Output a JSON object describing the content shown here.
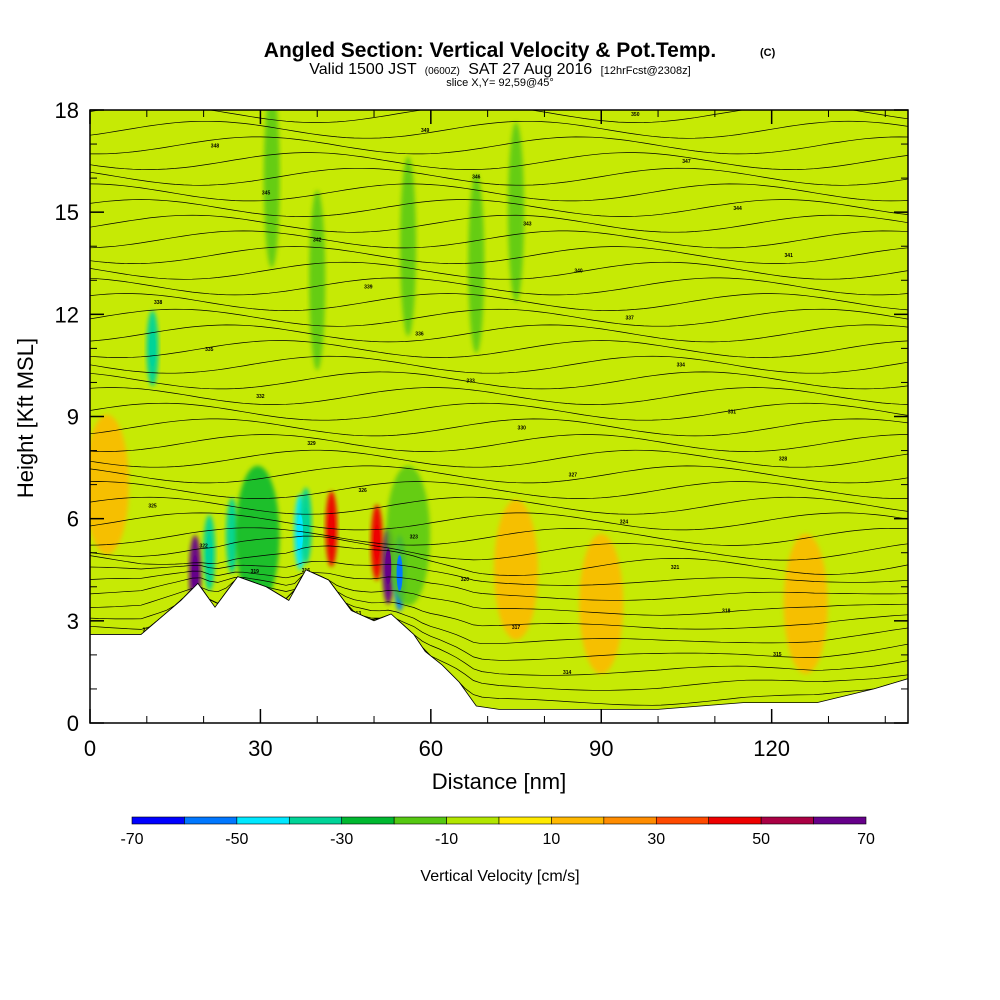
{
  "chart_data": {
    "type": "heatmap",
    "title": "Angled Section: Vertical Velocity & Pot.Temp.",
    "title_unit": "(C)",
    "subtitle_parts": [
      "Valid 1500 JST",
      "(0600Z)",
      "SAT 27 Aug 2016",
      "[12hrFcst@2308z]"
    ],
    "slice_label": "slice X,Y= 92,59@45°",
    "xlabel": "Distance [nm]",
    "ylabel": "Height [Kft MSL]",
    "xlim": [
      0,
      144
    ],
    "ylim": [
      0,
      18
    ],
    "xticks": [
      0,
      30,
      60,
      90,
      120
    ],
    "yticks": [
      0,
      3,
      6,
      9,
      12,
      15,
      18
    ],
    "colorbar": {
      "title": "Vertical Velocity [cm/s]",
      "tick_labels": [
        -70,
        -50,
        -30,
        -10,
        10,
        30,
        50,
        70
      ],
      "bins": [
        {
          "min": -70,
          "max": -60,
          "color": "#0000ff"
        },
        {
          "min": -60,
          "max": -50,
          "color": "#0077ff"
        },
        {
          "min": -50,
          "max": -40,
          "color": "#00e8ff"
        },
        {
          "min": -40,
          "max": -30,
          "color": "#00d498"
        },
        {
          "min": -30,
          "max": -20,
          "color": "#00b830"
        },
        {
          "min": -20,
          "max": -10,
          "color": "#55c812"
        },
        {
          "min": -10,
          "max": 0,
          "color": "#b2e600"
        },
        {
          "min": 0,
          "max": 10,
          "color": "#ffea00"
        },
        {
          "min": 10,
          "max": 20,
          "color": "#ffb800"
        },
        {
          "min": 20,
          "max": 30,
          "color": "#ff8c00"
        },
        {
          "min": 30,
          "max": 40,
          "color": "#ff4a00"
        },
        {
          "min": 40,
          "max": 50,
          "color": "#ee0000"
        },
        {
          "min": 50,
          "max": 60,
          "color": "#aa0044"
        },
        {
          "min": 60,
          "max": 70,
          "color": "#66008a"
        }
      ]
    },
    "terrain": [
      [
        0,
        2.6
      ],
      [
        9,
        2.6
      ],
      [
        16,
        3.6
      ],
      [
        19,
        4.1
      ],
      [
        22,
        3.4
      ],
      [
        26,
        4.3
      ],
      [
        31,
        4.0
      ],
      [
        35,
        3.6
      ],
      [
        38,
        4.5
      ],
      [
        42,
        4.2
      ],
      [
        46,
        3.3
      ],
      [
        50,
        3.0
      ],
      [
        53,
        3.2
      ],
      [
        57,
        2.6
      ],
      [
        59,
        2.1
      ],
      [
        62,
        1.7
      ],
      [
        65,
        1.2
      ],
      [
        68,
        0.5
      ],
      [
        72,
        0.4
      ],
      [
        100,
        0.4
      ],
      [
        115,
        0.6
      ],
      [
        128,
        0.6
      ],
      [
        138,
        1.0
      ],
      [
        144,
        1.3
      ]
    ],
    "velocity_features": [
      {
        "x": 11,
        "y": 11.0,
        "value": -40
      },
      {
        "x": 18.5,
        "y": 4.4,
        "value": 60
      },
      {
        "x": 21,
        "y": 5.0,
        "value": -40
      },
      {
        "x": 25,
        "y": 5.5,
        "value": -35
      },
      {
        "x": 29.5,
        "y": 5.5,
        "value": -30
      },
      {
        "x": 37,
        "y": 5.6,
        "value": -50
      },
      {
        "x": 38,
        "y": 5.8,
        "value": -40
      },
      {
        "x": 42.5,
        "y": 5.7,
        "value": 45
      },
      {
        "x": 50.5,
        "y": 5.3,
        "value": 45
      },
      {
        "x": 52.5,
        "y": 4.6,
        "value": 65
      },
      {
        "x": 54.5,
        "y": 4.4,
        "value": -60
      },
      {
        "x": 56,
        "y": 5.5,
        "value": -20
      },
      {
        "x": 32,
        "y": 16.0,
        "value": -20
      },
      {
        "x": 40,
        "y": 13.0,
        "value": -15
      },
      {
        "x": 56,
        "y": 14.0,
        "value": -20
      },
      {
        "x": 75,
        "y": 15.0,
        "value": -15
      },
      {
        "x": 68,
        "y": 13.5,
        "value": -15
      },
      {
        "x": 3,
        "y": 7.0,
        "value": 15
      },
      {
        "x": 75,
        "y": 4.5,
        "value": 15
      },
      {
        "x": 90,
        "y": 3.5,
        "value": 15
      },
      {
        "x": 126,
        "y": 3.5,
        "value": 15
      }
    ],
    "contour_labels": [
      "313",
      "313",
      "314",
      "315",
      "316",
      "317",
      "318",
      "319",
      "320",
      "321",
      "322",
      "323",
      "324",
      "325",
      "326",
      "327",
      "328",
      "329",
      "330",
      "331",
      "332",
      "333",
      "334",
      "335",
      "336",
      "337",
      "338",
      "339",
      "340",
      "341",
      "342",
      "343",
      "344",
      "345",
      "346",
      "347",
      "348",
      "349",
      "350"
    ]
  }
}
